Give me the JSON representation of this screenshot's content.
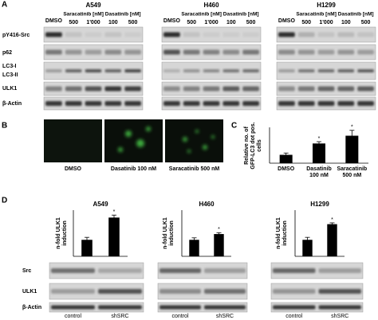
{
  "figure": {
    "panel_labels": [
      "A",
      "B",
      "C",
      "D"
    ],
    "blots_a": {
      "row_labels": [
        "pY416-Src",
        "p62",
        "LC3-I",
        "LC3-II",
        "ULK1",
        "β-Actin"
      ],
      "groups": [
        {
          "title": "A549",
          "control": "DMSO",
          "treatments": [
            "Saracatinib [nM]",
            "Dasatinib [nM]"
          ],
          "doses": [
            "500",
            "1'000",
            "100",
            "500"
          ]
        },
        {
          "title": "H460",
          "control": "DMSO",
          "treatments": [
            "Saracatinib [nM]",
            "Dasatinib [nM]"
          ],
          "doses": [
            "500",
            "1'000",
            "100",
            "500"
          ]
        },
        {
          "title": "H1299",
          "control": "DMSO",
          "treatments": [
            "Saracatinib [nM]",
            "Dasatinib [nM]"
          ],
          "doses": [
            "500",
            "1'000",
            "100",
            "500"
          ]
        }
      ]
    },
    "microscopy_b": {
      "captions": [
        "DMSO",
        "Dasatinib 100 nM",
        "Saracatinib 500 nM"
      ]
    },
    "blots_d": {
      "row_labels": [
        "Src",
        "ULK1",
        "β-Actin"
      ]
    }
  },
  "chart_data": [
    {
      "type": "bar",
      "ylabel": "Relative no. of GFP-LC3 dot pos. cells",
      "categories": [
        "DMSO",
        "Dasatinib 100 nM",
        "Saracatinib 500 nM"
      ],
      "values": [
        0.14,
        0.33,
        0.46
      ],
      "errors": [
        0.03,
        0.03,
        0.09
      ],
      "annotations": [
        null,
        "*",
        "*"
      ],
      "ylim": [
        0,
        0.6
      ],
      "color": "#000000"
    },
    {
      "type": "bar",
      "title": "A549",
      "ylabel": "n-fold ULK1 induction",
      "categories": [
        "control",
        "shSRC"
      ],
      "values": [
        1,
        2.35
      ],
      "errors": [
        0.15,
        0.15
      ],
      "annotations": [
        null,
        "*"
      ],
      "ylim": [
        0,
        2.8
      ],
      "color": "#000000"
    },
    {
      "type": "bar",
      "title": "H460",
      "ylabel": "n-fold ULK1 induction",
      "categories": [
        "control",
        "shSRC"
      ],
      "values": [
        1,
        1.35
      ],
      "errors": [
        0.12,
        0.08
      ],
      "annotations": [
        null,
        "*"
      ],
      "ylim": [
        0,
        2.8
      ],
      "color": "#000000"
    },
    {
      "type": "bar",
      "title": "H1299",
      "ylabel": "n-fold ULK1 induction",
      "categories": [
        "control",
        "shSRC"
      ],
      "values": [
        1,
        1.95
      ],
      "errors": [
        0.15,
        0.08
      ],
      "annotations": [
        null,
        "*"
      ],
      "ylim": [
        0,
        2.8
      ],
      "color": "#000000"
    }
  ]
}
